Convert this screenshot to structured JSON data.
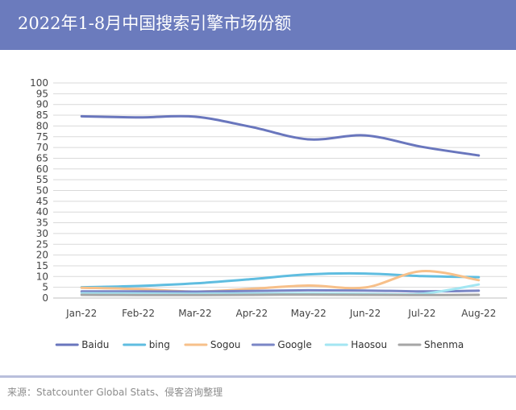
{
  "header": {
    "title": "2022年1-8月中国搜索引擎市场份额"
  },
  "footer": {
    "source": "来源：Statcounter Global Stats、侵客咨询整理"
  },
  "colors": {
    "header_bg": "#6b7bbd",
    "grid": "#d9d9d9"
  },
  "chart_data": {
    "type": "line",
    "title": "2022年1-8月中国搜索引擎市场份额",
    "xlabel": "",
    "ylabel": "",
    "ylim": [
      0,
      100
    ],
    "yticks": [
      0,
      5,
      10,
      15,
      20,
      25,
      30,
      35,
      40,
      45,
      50,
      55,
      60,
      65,
      70,
      75,
      80,
      85,
      90,
      95,
      100
    ],
    "grid": true,
    "legend": "bottom",
    "categories": [
      "Jan-22",
      "Feb-22",
      "Mar-22",
      "Apr-22",
      "May-22",
      "Jun-22",
      "Jul-22",
      "Aug-22"
    ],
    "series": [
      {
        "name": "Baidu",
        "color": "#6976bd",
        "values": [
          84.5,
          84.0,
          84.3,
          79.5,
          73.8,
          75.6,
          70.3,
          66.3
        ]
      },
      {
        "name": "bing",
        "color": "#5fbde0",
        "values": [
          5.0,
          5.6,
          6.8,
          8.8,
          11.0,
          11.4,
          10.2,
          9.7
        ]
      },
      {
        "name": "Sogou",
        "color": "#f7c08a",
        "values": [
          4.8,
          4.2,
          3.0,
          4.3,
          5.8,
          4.9,
          12.5,
          8.3
        ]
      },
      {
        "name": "Google",
        "color": "#7a86c6",
        "values": [
          3.1,
          3.1,
          3.0,
          3.3,
          3.6,
          3.5,
          3.1,
          3.4
        ]
      },
      {
        "name": "Haosou",
        "color": "#a3e6f2",
        "values": [
          2.2,
          2.1,
          2.0,
          2.1,
          2.2,
          2.0,
          2.0,
          6.3
        ]
      },
      {
        "name": "Shenma",
        "color": "#a6a6a6",
        "values": [
          1.5,
          1.4,
          1.4,
          1.5,
          1.6,
          1.5,
          1.4,
          1.5
        ]
      }
    ]
  }
}
